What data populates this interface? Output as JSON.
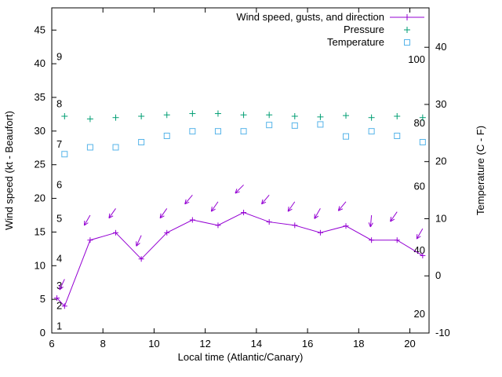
{
  "figure": {
    "background": "#ffffff",
    "axis_color": "#000000",
    "legend": [
      {
        "label": "Wind speed, gusts, and direction",
        "series": "wind"
      },
      {
        "label": "Pressure",
        "series": "pressure"
      },
      {
        "label": "Temperature",
        "series": "temperature"
      }
    ]
  },
  "chart_data": {
    "type": "line",
    "title": "",
    "xlabel": "Local time (Atlantic/Canary)",
    "ylabel_left": "Wind speed (kt - Beaufort)",
    "ylabel_right": "Temperature (C - F)",
    "xlim": [
      6,
      20.75
    ],
    "ylim_left": [
      0,
      48.3
    ],
    "ylim_right": [
      -10,
      46.9
    ],
    "xticks": [
      6,
      8,
      10,
      12,
      14,
      16,
      18,
      20
    ],
    "yticks_left": [
      0,
      5,
      10,
      15,
      20,
      25,
      30,
      35,
      40,
      45
    ],
    "yticks_right": [
      -10,
      0,
      10,
      20,
      30,
      40
    ],
    "beaufort_labels": [
      {
        "label": "1",
        "kt": 1
      },
      {
        "label": "2",
        "kt": 4
      },
      {
        "label": "3",
        "kt": 7
      },
      {
        "label": "4",
        "kt": 11
      },
      {
        "label": "5",
        "kt": 17
      },
      {
        "label": "6",
        "kt": 22
      },
      {
        "label": "7",
        "kt": 28
      },
      {
        "label": "8",
        "kt": 34
      },
      {
        "label": "9",
        "kt": 41
      }
    ],
    "fahrenheit_labels": [
      {
        "label": "20",
        "c": -6.7
      },
      {
        "label": "40",
        "c": 4.4
      },
      {
        "label": "60",
        "c": 15.6
      },
      {
        "label": "80",
        "c": 26.7
      },
      {
        "label": "100",
        "c": 37.8
      }
    ],
    "series": {
      "wind_speed": {
        "color": "#9400d3",
        "axis": "left",
        "x": [
          6.2,
          6.5,
          7.5,
          8.5,
          9.5,
          10.5,
          11.5,
          12.5,
          13.5,
          14.5,
          15.5,
          16.5,
          17.5,
          18.5,
          19.5,
          20.5
        ],
        "values_kt": [
          5.2,
          4,
          13.8,
          14.9,
          11,
          14.9,
          16.8,
          16,
          17.9,
          16.5,
          16,
          14.9,
          15.9,
          13.8,
          13.8,
          11.5
        ]
      },
      "wind_gusts_direction": {
        "color": "#9400d3",
        "axis": "left",
        "x": [
          6.5,
          7.5,
          8.5,
          9.5,
          10.5,
          11.5,
          12.5,
          13.5,
          14.5,
          15.5,
          16.5,
          17.5,
          18.5,
          19.5,
          20.5
        ],
        "gust_kt": [
          8,
          17.5,
          18.5,
          14.5,
          18.5,
          20.5,
          19.5,
          22,
          20.5,
          19.5,
          18.5,
          19.5,
          17.5,
          18,
          15.5
        ],
        "arrow_dir_deg": [
          205,
          210,
          215,
          205,
          215,
          220,
          215,
          225,
          220,
          215,
          210,
          220,
          185,
          215,
          210
        ]
      },
      "pressure": {
        "color": "#009e73",
        "axis": "left",
        "x": [
          6.5,
          7.5,
          8.5,
          9.5,
          10.5,
          11.5,
          12.5,
          13.5,
          14.5,
          15.5,
          16.5,
          17.5,
          18.5,
          19.5,
          20.5
        ],
        "plotted_left_axis": [
          32.2,
          31.8,
          32.0,
          32.2,
          32.4,
          32.6,
          32.6,
          32.4,
          32.4,
          32.2,
          32.1,
          32.3,
          32.0,
          32.2,
          32.0
        ]
      },
      "temperature": {
        "color": "#56b4e9",
        "axis": "right",
        "x": [
          6.5,
          7.5,
          8.5,
          9.5,
          10.5,
          11.5,
          12.5,
          13.5,
          14.5,
          15.5,
          16.5,
          17.5,
          18.5,
          19.5,
          20.5
        ],
        "values_c": [
          21.3,
          22.5,
          22.5,
          23.4,
          24.5,
          25.3,
          25.3,
          25.3,
          26.4,
          26.3,
          26.5,
          24.4,
          25.3,
          24.5,
          23.4
        ]
      }
    }
  }
}
